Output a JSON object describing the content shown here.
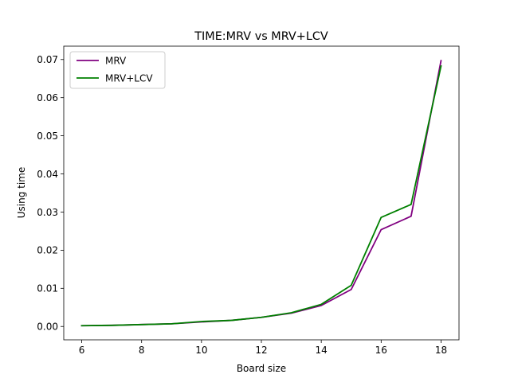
{
  "chart_data": {
    "type": "line",
    "title": "TIME:MRV vs MRV+LCV",
    "xlabel": "Board size",
    "ylabel": "Using time",
    "xlim": [
      5.4,
      18.6
    ],
    "ylim": [
      -0.0035,
      0.0735
    ],
    "xticks": [
      6,
      8,
      10,
      12,
      14,
      16,
      18
    ],
    "xtick_labels": [
      "6",
      "8",
      "10",
      "12",
      "14",
      "16",
      "18"
    ],
    "yticks": [
      0.0,
      0.01,
      0.02,
      0.03,
      0.04,
      0.05,
      0.06,
      0.07
    ],
    "ytick_labels": [
      "0.00",
      "0.01",
      "0.02",
      "0.03",
      "0.04",
      "0.05",
      "0.06",
      "0.07"
    ],
    "grid": false,
    "legend_position": "upper-left",
    "x": [
      6,
      7,
      8,
      9,
      10,
      11,
      12,
      13,
      14,
      15,
      16,
      17,
      18
    ],
    "series": [
      {
        "name": "MRV",
        "color": "#800080",
        "values": [
          0.0002,
          0.0003,
          0.0005,
          0.0007,
          0.0012,
          0.0016,
          0.0024,
          0.0035,
          0.0055,
          0.0097,
          0.0254,
          0.0289,
          0.0697
        ]
      },
      {
        "name": "MRV+LCV",
        "color": "#008000",
        "values": [
          0.0002,
          0.0003,
          0.0005,
          0.0007,
          0.0013,
          0.0016,
          0.0024,
          0.0036,
          0.0058,
          0.0108,
          0.0286,
          0.032,
          0.0683
        ]
      }
    ]
  }
}
